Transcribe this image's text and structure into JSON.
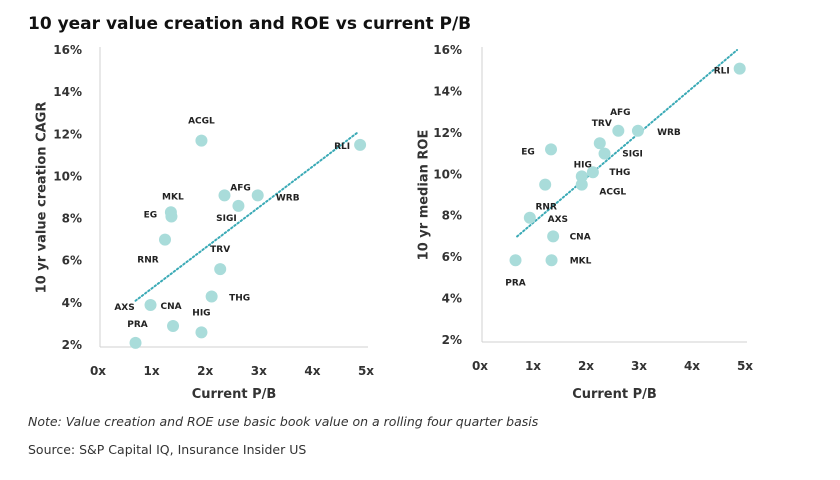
{
  "title": "10 year value creation and ROE vs current P/B",
  "note": "Note: Value creation and ROE use basic book value on a rolling four quarter basis",
  "source": "Source: S&P Capital IQ, Insurance Insider US",
  "colors": {
    "dot": "#a9dcda",
    "trend": "#3aaab6",
    "axis": "#d0d0d0"
  },
  "chart_data": [
    {
      "type": "scatter",
      "title": "",
      "xlabel": "Current P/B",
      "ylabel": "10 yr value creation CAGR",
      "xlim": [
        0,
        5
      ],
      "ylim": [
        2,
        16
      ],
      "xticks": [
        "0x",
        "1x",
        "2x",
        "3x",
        "4x",
        "5x"
      ],
      "yticks": [
        "2%",
        "4%",
        "6%",
        "8%",
        "10%",
        "12%",
        "14%",
        "16%"
      ],
      "trendline": {
        "x": [
          0.7,
          4.85
        ],
        "y": [
          4.1,
          12.1
        ]
      },
      "points": [
        {
          "label": "ACGL",
          "x": 1.93,
          "y": 11.7
        },
        {
          "label": "RLI",
          "x": 4.89,
          "y": 11.5
        },
        {
          "label": "AFG",
          "x": 2.36,
          "y": 9.1
        },
        {
          "label": "WRB",
          "x": 2.98,
          "y": 9.1
        },
        {
          "label": "SIGI",
          "x": 2.62,
          "y": 8.6
        },
        {
          "label": "MKL",
          "x": 1.36,
          "y": 8.3
        },
        {
          "label": "EG",
          "x": 1.37,
          "y": 8.1
        },
        {
          "label": "RNR",
          "x": 1.25,
          "y": 7.0
        },
        {
          "label": "TRV",
          "x": 2.28,
          "y": 5.6
        },
        {
          "label": "THG",
          "x": 2.12,
          "y": 4.3
        },
        {
          "label": "AXS",
          "x": 0.98,
          "y": 3.9
        },
        {
          "label": "CNA",
          "x": 1.4,
          "y": 2.9
        },
        {
          "label": "HIG",
          "x": 1.93,
          "y": 2.6
        },
        {
          "label": "PRA",
          "x": 0.7,
          "y": 2.1
        }
      ]
    },
    {
      "type": "scatter",
      "title": "",
      "xlabel": "Current P/B",
      "ylabel": "10 yr median ROE",
      "xlim": [
        0,
        5
      ],
      "ylim": [
        2,
        16
      ],
      "xticks": [
        "0x",
        "1x",
        "2x",
        "3x",
        "4x",
        "5x"
      ],
      "yticks": [
        "2%",
        "4%",
        "6%",
        "8%",
        "10%",
        "12%",
        "14%",
        "16%"
      ],
      "trendline": {
        "x": [
          0.7,
          4.85
        ],
        "y": [
          7.0,
          16.0
        ]
      },
      "points": [
        {
          "label": "RLI",
          "x": 4.9,
          "y": 15.1
        },
        {
          "label": "AFG",
          "x": 2.61,
          "y": 12.1
        },
        {
          "label": "WRB",
          "x": 2.98,
          "y": 12.1
        },
        {
          "label": "TRV",
          "x": 2.26,
          "y": 11.5
        },
        {
          "label": "SIGI",
          "x": 2.35,
          "y": 11.0
        },
        {
          "label": "EG",
          "x": 1.34,
          "y": 11.2
        },
        {
          "label": "HIG",
          "x": 1.92,
          "y": 9.9
        },
        {
          "label": "THG",
          "x": 2.13,
          "y": 10.1
        },
        {
          "label": "ACGL",
          "x": 1.92,
          "y": 9.5
        },
        {
          "label": "RNR",
          "x": 1.23,
          "y": 9.5
        },
        {
          "label": "AXS",
          "x": 0.94,
          "y": 7.9
        },
        {
          "label": "CNA",
          "x": 1.38,
          "y": 7.0
        },
        {
          "label": "MKL",
          "x": 1.35,
          "y": 5.85
        },
        {
          "label": "PRA",
          "x": 0.67,
          "y": 5.85
        }
      ]
    }
  ]
}
